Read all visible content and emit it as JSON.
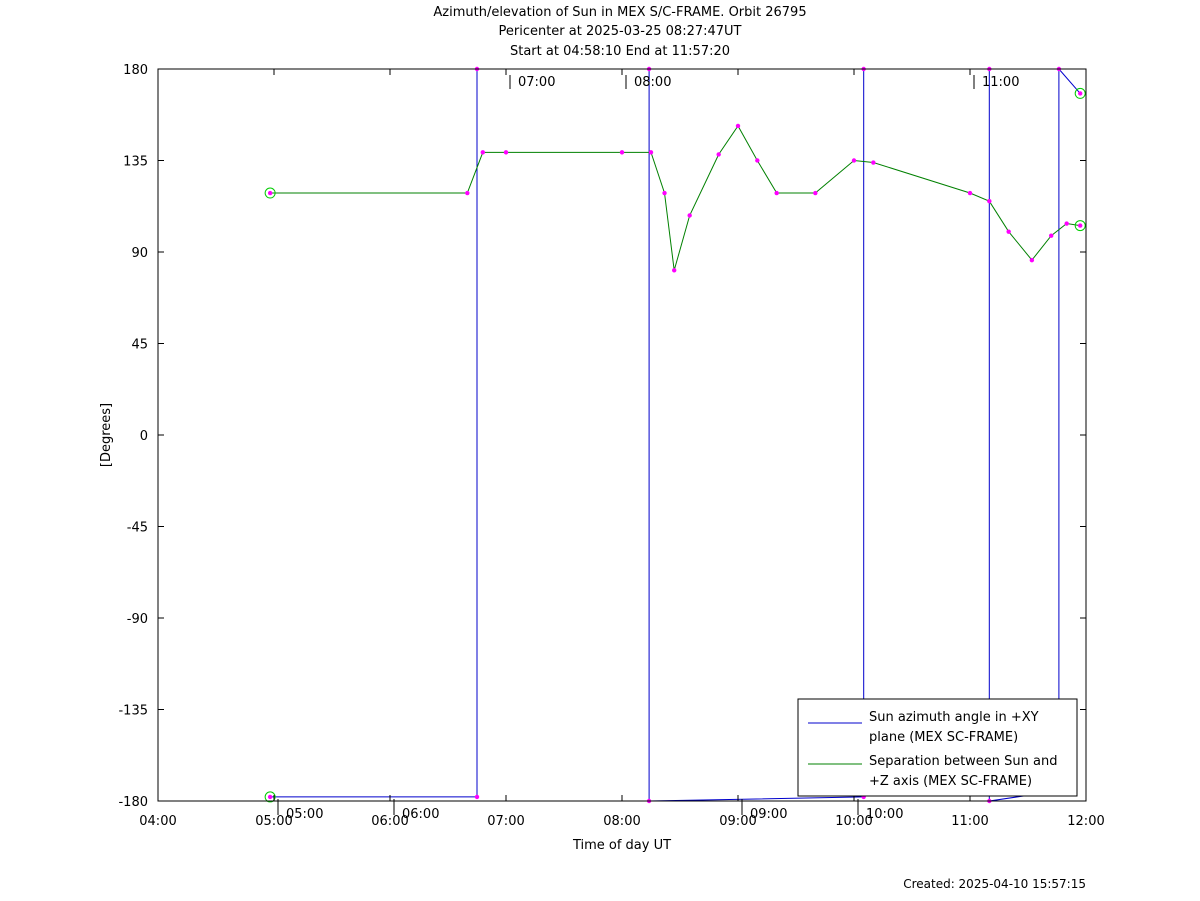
{
  "header": {
    "title": "Azimuth/elevation of Sun in MEX S/C-FRAME.  Orbit 26795",
    "pericenter": "Pericenter at 2025-03-25 08:27:47UT",
    "start_end": "Start at 04:58:10 End at 11:57:20"
  },
  "footer": {
    "created": "Created: 2025-04-10 15:57:15"
  },
  "chart_data": {
    "type": "line",
    "title": "Azimuth/elevation of Sun in MEX S/C-FRAME.  Orbit 26795",
    "xlabel": "Time of day UT",
    "ylabel": "[Degrees]",
    "xlim": [
      "04:00",
      "12:00"
    ],
    "ylim": [
      -180,
      180
    ],
    "x_ticks": [
      "04:00",
      "05:00",
      "06:00",
      "07:00",
      "08:00",
      "09:00",
      "10:00",
      "11:00",
      "12:00"
    ],
    "y_ticks": [
      180,
      135,
      90,
      45,
      0,
      -45,
      -90,
      -135,
      -180
    ],
    "grid": false,
    "legend_position": "bottom-right",
    "top_time_markers": [
      "07:00",
      "08:00",
      "11:00"
    ],
    "bottom_time_markers": [
      "05:00",
      "06:00",
      "09:00",
      "10:00"
    ],
    "series": [
      {
        "name": "Sun azimuth angle in +XY plane (MEX SC-FRAME)",
        "legend_lines": [
          "Sun azimuth angle in +XY",
          "plane (MEX SC-FRAME)"
        ],
        "color": "#0000cc",
        "x": [
          "04:58",
          "06:45",
          "06:45",
          "08:14",
          "08:14",
          "10:05",
          "10:05",
          "11:10",
          "11:10",
          "11:46",
          "11:46",
          "11:57"
        ],
        "y": [
          -178,
          -178,
          180,
          180,
          -180,
          -178,
          180,
          180,
          -180,
          -175,
          180,
          168
        ]
      },
      {
        "name": "Separation between Sun and +Z axis (MEX SC-FRAME)",
        "legend_lines": [
          "Separation between Sun and",
          "+Z axis (MEX SC-FRAME)"
        ],
        "color": "#008000",
        "x": [
          "04:58",
          "06:40",
          "06:48",
          "07:00",
          "08:00",
          "08:15",
          "08:22",
          "08:27",
          "08:35",
          "08:50",
          "09:00",
          "09:10",
          "09:20",
          "09:40",
          "10:00",
          "10:10",
          "11:00",
          "11:10",
          "11:20",
          "11:32",
          "11:42",
          "11:50",
          "11:57"
        ],
        "y": [
          119,
          119,
          139,
          139,
          139,
          139,
          119,
          81,
          108,
          138,
          152,
          135,
          119,
          119,
          135,
          134,
          119,
          115,
          100,
          86,
          98,
          104,
          103
        ]
      }
    ],
    "marker_color": "#ff00ff",
    "endpoint_marker_color": "#00cc00"
  }
}
